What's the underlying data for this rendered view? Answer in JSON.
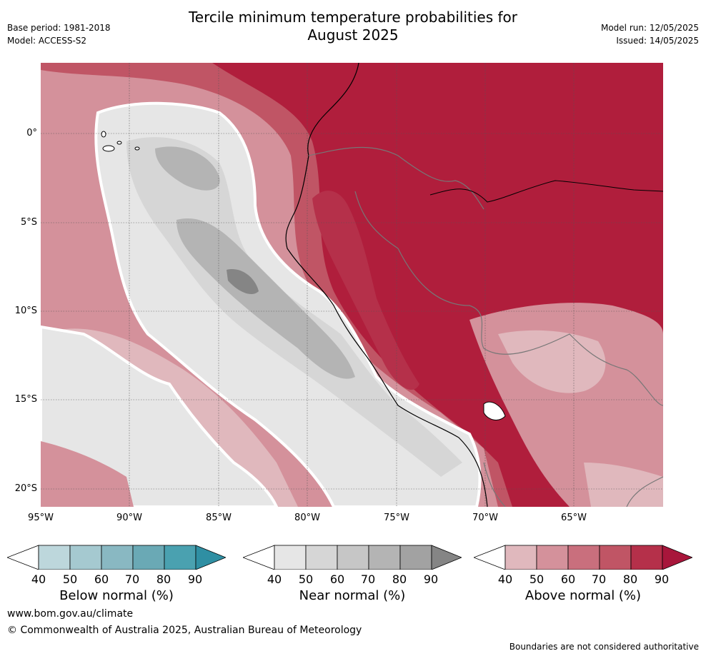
{
  "title_line1": "Tercile minimum temperature probabilities for",
  "title_line2": "August 2025",
  "meta": {
    "base_period": "Base period: 1981-2018",
    "model": "Model: ACCESS-S2",
    "model_run": "Model run: 12/05/2025",
    "issued": "Issued: 14/05/2025"
  },
  "map": {
    "lat_ticks": [
      "0°",
      "5°S",
      "10°S",
      "15°S",
      "20°S"
    ],
    "lon_ticks": [
      "95°W",
      "90°W",
      "85°W",
      "80°W",
      "75°W",
      "70°W",
      "65°W"
    ]
  },
  "colorbars": [
    {
      "label": "Below normal (%)",
      "ticks": [
        "40",
        "50",
        "60",
        "70",
        "80",
        "90"
      ],
      "colors": [
        "#ffffff",
        "#bdd7dc",
        "#a5c9d0",
        "#89b8c2",
        "#6aa9b5",
        "#4aa1b0",
        "#2f8fa3"
      ]
    },
    {
      "label": "Near normal (%)",
      "ticks": [
        "40",
        "50",
        "60",
        "70",
        "80",
        "90"
      ],
      "colors": [
        "#ffffff",
        "#e6e6e6",
        "#d6d6d6",
        "#c6c6c6",
        "#b4b4b4",
        "#a2a2a2",
        "#858585"
      ]
    },
    {
      "label": "Above normal (%)",
      "ticks": [
        "40",
        "50",
        "60",
        "70",
        "80",
        "90"
      ],
      "colors": [
        "#ffffff",
        "#e0b8bd",
        "#d4919b",
        "#c96f7d",
        "#c05565",
        "#b5304a",
        "#a8163b"
      ]
    }
  ],
  "footer": {
    "url": "www.bom.gov.au/climate",
    "copyright": "© Commonwealth of Australia 2025, Australian Bureau of Meteorology",
    "disclaimer": "Boundaries are not considered authoritative"
  }
}
